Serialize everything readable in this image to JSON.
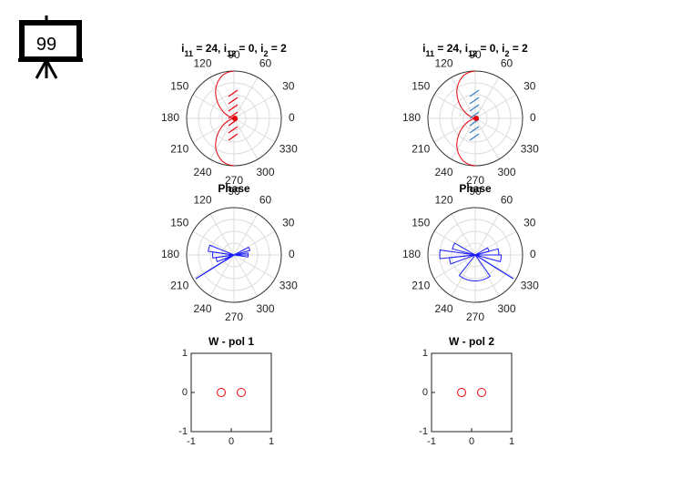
{
  "slide": {
    "number": "99",
    "icon": "presentation-board-icon"
  },
  "colors": {
    "red": "#e8000b",
    "blue": "#1a1aff",
    "blue_steel": "#3b7fc4",
    "grid": "#dcdcdc",
    "axis": "#000000"
  },
  "chart_data": [
    {
      "type": "polar",
      "title_parts": [
        {
          "t": "i"
        },
        {
          "t": "11",
          "sub": true
        },
        {
          "t": " = 24, i"
        },
        {
          "t": "12",
          "sub": true
        },
        {
          "t": " = 0, i"
        },
        {
          "t": "2",
          "sub": true
        },
        {
          "t": " = 2"
        }
      ],
      "angle_ticks": [
        "0",
        "30",
        "60",
        "90",
        "120",
        "150",
        "180",
        "210",
        "240",
        "270",
        "300",
        "330"
      ],
      "series": [
        {
          "kind": "pattern",
          "theta_deg": [
            90,
            95,
            100,
            105,
            110,
            115,
            120,
            125,
            130,
            135,
            140,
            145,
            150,
            155,
            160,
            165,
            170,
            175,
            180,
            185,
            190,
            195,
            200,
            205,
            210,
            215,
            220,
            225,
            230,
            235,
            240,
            245,
            250,
            255,
            260,
            265,
            270
          ],
          "r": [
            1.0,
            0.99,
            0.97,
            0.94,
            0.89,
            0.83,
            0.76,
            0.68,
            0.59,
            0.5,
            0.41,
            0.32,
            0.24,
            0.17,
            0.11,
            0.06,
            0.03,
            0.01,
            0.0,
            0.01,
            0.03,
            0.06,
            0.11,
            0.17,
            0.24,
            0.32,
            0.41,
            0.5,
            0.59,
            0.68,
            0.76,
            0.83,
            0.89,
            0.94,
            0.97,
            0.99,
            1.0
          ],
          "mirror": true
        },
        {
          "kind": "array-elements",
          "count": 7,
          "color_key": "red"
        }
      ]
    },
    {
      "type": "polar",
      "title_parts": [
        {
          "t": "i"
        },
        {
          "t": "11",
          "sub": true
        },
        {
          "t": " = 24, i"
        },
        {
          "t": "12",
          "sub": true
        },
        {
          "t": " = 0, i"
        },
        {
          "t": "2",
          "sub": true
        },
        {
          "t": " = 2"
        }
      ],
      "angle_ticks": [
        "0",
        "30",
        "60",
        "90",
        "120",
        "150",
        "180",
        "210",
        "240",
        "270",
        "300",
        "330"
      ],
      "series": [
        {
          "kind": "pattern",
          "theta_deg": [
            90,
            95,
            100,
            105,
            110,
            115,
            120,
            125,
            130,
            135,
            140,
            145,
            150,
            155,
            160,
            165,
            170,
            175,
            180,
            185,
            190,
            195,
            200,
            205,
            210,
            215,
            220,
            225,
            230,
            235,
            240,
            245,
            250,
            255,
            260,
            265,
            270
          ],
          "r": [
            1.0,
            0.99,
            0.97,
            0.94,
            0.89,
            0.83,
            0.76,
            0.68,
            0.59,
            0.5,
            0.41,
            0.32,
            0.24,
            0.17,
            0.11,
            0.06,
            0.03,
            0.01,
            0.0,
            0.01,
            0.03,
            0.06,
            0.11,
            0.17,
            0.24,
            0.32,
            0.41,
            0.5,
            0.59,
            0.68,
            0.76,
            0.83,
            0.89,
            0.94,
            0.97,
            0.99,
            1.0
          ],
          "mirror": true
        },
        {
          "kind": "array-elements",
          "count": 7,
          "color_key": "blue_steel"
        }
      ]
    },
    {
      "type": "polar-histogram",
      "title": "Phase",
      "angle_ticks": [
        "0",
        "30",
        "60",
        "90",
        "120",
        "150",
        "180",
        "210",
        "240",
        "270",
        "300",
        "330"
      ],
      "bins": [
        {
          "theta": [
            158,
            172
          ],
          "r": 0.55
        },
        {
          "theta": [
            172,
            188
          ],
          "r": 0.45
        },
        {
          "theta": [
            188,
            202
          ],
          "r": 0.38
        },
        {
          "theta": [
            16,
            28
          ],
          "r": 0.35
        },
        {
          "theta": [
            0,
            8
          ],
          "r": 0.3
        },
        {
          "theta": [
            352,
            360
          ],
          "r": 0.3
        },
        {
          "theta": [
            202,
            214
          ],
          "r": 0.2
        }
      ],
      "spike": {
        "theta": 212,
        "r": 0.95
      }
    },
    {
      "type": "polar-histogram",
      "title": "Phase",
      "angle_ticks": [
        "0",
        "30",
        "60",
        "90",
        "120",
        "150",
        "180",
        "210",
        "240",
        "270",
        "300",
        "330"
      ],
      "bins": [
        {
          "theta": [
            172,
            186
          ],
          "r": 0.75
        },
        {
          "theta": [
            186,
            200
          ],
          "r": 0.55
        },
        {
          "theta": [
            150,
            165
          ],
          "r": 0.5
        },
        {
          "theta": [
            232,
            305
          ],
          "r": 0.55
        },
        {
          "theta": [
            0,
            15
          ],
          "r": 0.5
        },
        {
          "theta": [
            345,
            360
          ],
          "r": 0.55
        },
        {
          "theta": [
            15,
            30
          ],
          "r": 0.3
        }
      ],
      "spike": {
        "theta": 328,
        "r": 0.95
      }
    },
    {
      "type": "scatter",
      "title": "W - pol 1",
      "xlim": [
        -1,
        1
      ],
      "ylim": [
        -1,
        1
      ],
      "xticks": [
        "-1",
        "0",
        "1"
      ],
      "yticks": [
        "-1",
        "0",
        "1"
      ],
      "points": [
        {
          "x": -0.25,
          "y": 0
        },
        {
          "x": 0.25,
          "y": 0
        }
      ]
    },
    {
      "type": "scatter",
      "title": "W - pol 2",
      "xlim": [
        -1,
        1
      ],
      "ylim": [
        -1,
        1
      ],
      "xticks": [
        "-1",
        "0",
        "1"
      ],
      "yticks": [
        "-1",
        "0",
        "1"
      ],
      "points": [
        {
          "x": -0.25,
          "y": 0
        },
        {
          "x": 0.25,
          "y": 0
        }
      ]
    }
  ]
}
